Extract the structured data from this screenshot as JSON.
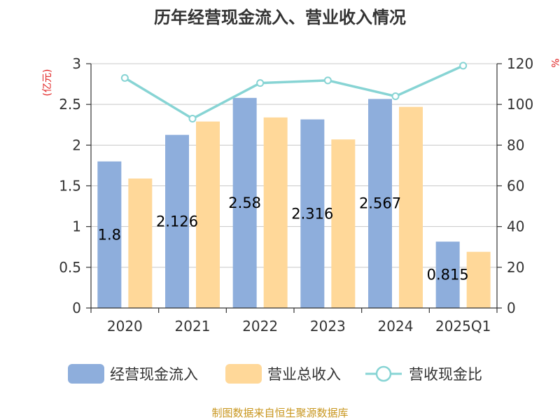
{
  "chart_data": {
    "type": "bar",
    "title": "历年经营现金流入、营业收入情况",
    "categories": [
      "2020",
      "2021",
      "2022",
      "2023",
      "2024",
      "2025Q1"
    ],
    "y_left": {
      "unit_label": "(亿元)",
      "ticks": [
        "0",
        "0.5",
        "1",
        "1.5",
        "2",
        "2.5",
        "3"
      ],
      "ylim": [
        0,
        3
      ]
    },
    "y_right": {
      "unit_label": "%",
      "ticks": [
        "0",
        "20",
        "40",
        "60",
        "80",
        "100",
        "120"
      ],
      "ylim": [
        0,
        120
      ]
    },
    "grid": true,
    "legend_position": "bottom",
    "series": [
      {
        "name": "经营现金流入",
        "kind": "bar",
        "axis": "left",
        "color": "#8eaedc",
        "values": [
          1.8,
          2.126,
          2.58,
          2.316,
          2.567,
          0.815
        ],
        "labels": [
          "1.8",
          "2.126",
          "2.58",
          "2.316",
          "2.567",
          "0.815"
        ]
      },
      {
        "name": "营业总收入",
        "kind": "bar",
        "axis": "left",
        "color": "#ffd899",
        "values": [
          1.59,
          2.29,
          2.34,
          2.07,
          2.47,
          0.69
        ]
      },
      {
        "name": "营收现金比",
        "kind": "line",
        "axis": "right",
        "color": "#87d4d4",
        "values": [
          113,
          93,
          110.5,
          111.8,
          104,
          119
        ]
      }
    ],
    "source": "制图数据来自恒生聚源数据库"
  }
}
